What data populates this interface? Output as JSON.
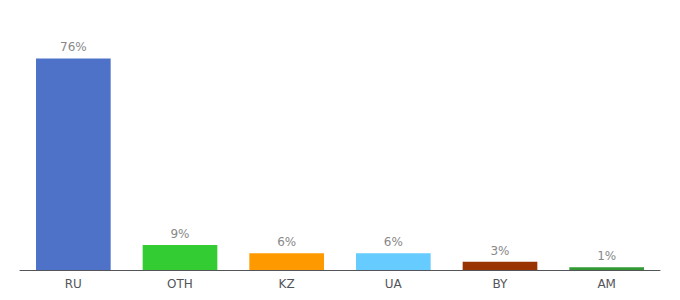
{
  "chart_data": {
    "type": "bar",
    "categories": [
      "RU",
      "OTH",
      "KZ",
      "UA",
      "BY",
      "AM"
    ],
    "values": [
      76,
      9,
      6,
      6,
      3,
      1
    ],
    "value_labels": [
      "76%",
      "9%",
      "6%",
      "6%",
      "3%",
      "1%"
    ],
    "colors": [
      "#4D72C8",
      "#33CC33",
      "#FF9900",
      "#66CCFF",
      "#993300",
      "#339933"
    ],
    "ylim": [
      0,
      88
    ],
    "data_labels": true,
    "grid": false,
    "tick_labels": "x"
  }
}
